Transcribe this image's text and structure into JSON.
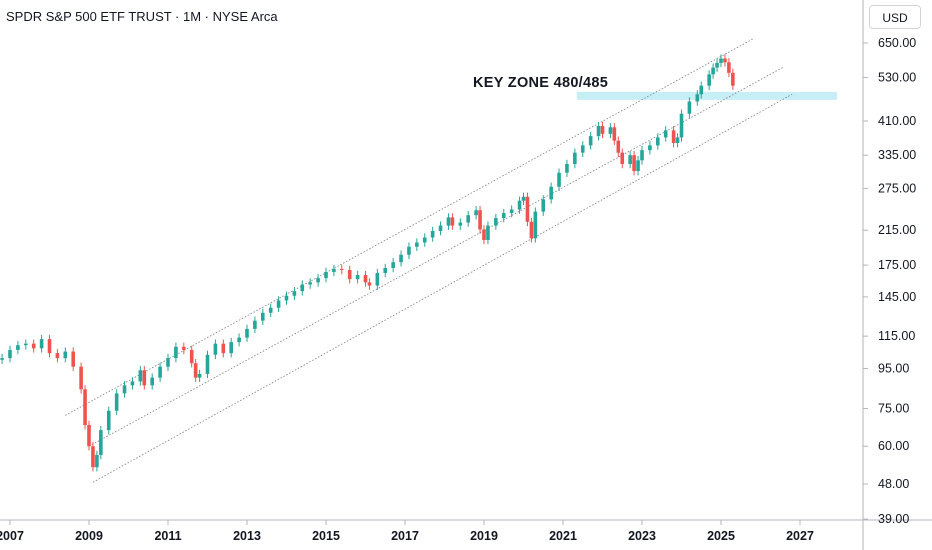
{
  "header": {
    "title": "SPDR S&P 500 ETF TRUST · 1M · NYSE Arca",
    "currency": "USD"
  },
  "chart_data": {
    "type": "candlestick",
    "title": "SPDR S&P 500 ETF TRUST · 1M · NYSE Arca",
    "y_scale": "log",
    "y_unit": "USD",
    "y_ticks": [
      650,
      530,
      410,
      335,
      275,
      215,
      175,
      145,
      115,
      95,
      75,
      60,
      48,
      39
    ],
    "y_tick_labels": [
      "650.00",
      "530.00",
      "410.00",
      "335.00",
      "275.00",
      "215.00",
      "175.00",
      "145.00",
      "115.00",
      "95.00",
      "75.00",
      "60.00",
      "48.00",
      "39.00"
    ],
    "x_tick_labels": [
      "2007",
      "2009",
      "2011",
      "2013",
      "2015",
      "2017",
      "2019",
      "2021",
      "2023",
      "2025",
      "2027"
    ],
    "x_ticks": [
      2007,
      2009,
      2011,
      2013,
      2015,
      2017,
      2019,
      2021,
      2023,
      2025,
      2027
    ],
    "x_range": [
      2006.8,
      2027.9
    ],
    "up_color": "#26a69a",
    "down_color": "#ef5350",
    "series": [
      {
        "values": [
          [
            2006.8,
            101
          ],
          [
            2007.0,
            106
          ],
          [
            2007.2,
            109
          ],
          [
            2007.4,
            110
          ],
          [
            2007.6,
            107
          ],
          [
            2007.8,
            113
          ],
          [
            2008.0,
            104
          ],
          [
            2008.2,
            101
          ],
          [
            2008.4,
            105
          ],
          [
            2008.6,
            96
          ],
          [
            2008.8,
            84
          ],
          [
            2008.9,
            68
          ],
          [
            2009.0,
            60
          ],
          [
            2009.1,
            53
          ],
          [
            2009.2,
            57
          ],
          [
            2009.3,
            66
          ],
          [
            2009.5,
            74
          ],
          [
            2009.7,
            82
          ],
          [
            2009.9,
            86
          ],
          [
            2010.1,
            88
          ],
          [
            2010.3,
            94
          ],
          [
            2010.4,
            86
          ],
          [
            2010.6,
            90
          ],
          [
            2010.8,
            96
          ],
          [
            2011.0,
            101
          ],
          [
            2011.2,
            108
          ],
          [
            2011.4,
            106
          ],
          [
            2011.6,
            98
          ],
          [
            2011.7,
            90
          ],
          [
            2011.8,
            92
          ],
          [
            2012.0,
            103
          ],
          [
            2012.2,
            110
          ],
          [
            2012.4,
            104
          ],
          [
            2012.6,
            111
          ],
          [
            2012.8,
            114
          ],
          [
            2013.0,
            120
          ],
          [
            2013.2,
            126
          ],
          [
            2013.4,
            132
          ],
          [
            2013.6,
            136
          ],
          [
            2013.8,
            142
          ],
          [
            2014.0,
            146
          ],
          [
            2014.2,
            150
          ],
          [
            2014.4,
            156
          ],
          [
            2014.6,
            158
          ],
          [
            2014.8,
            162
          ],
          [
            2015.0,
            168
          ],
          [
            2015.2,
            171
          ],
          [
            2015.4,
            170
          ],
          [
            2015.6,
            161
          ],
          [
            2015.8,
            165
          ],
          [
            2016.0,
            158
          ],
          [
            2016.1,
            155
          ],
          [
            2016.3,
            167
          ],
          [
            2016.5,
            172
          ],
          [
            2016.7,
            178
          ],
          [
            2016.9,
            186
          ],
          [
            2017.1,
            195
          ],
          [
            2017.3,
            200
          ],
          [
            2017.5,
            206
          ],
          [
            2017.7,
            214
          ],
          [
            2017.9,
            221
          ],
          [
            2018.1,
            232
          ],
          [
            2018.2,
            221
          ],
          [
            2018.4,
            225
          ],
          [
            2018.6,
            235
          ],
          [
            2018.8,
            242
          ],
          [
            2018.9,
            216
          ],
          [
            2019.0,
            203
          ],
          [
            2019.1,
            221
          ],
          [
            2019.3,
            231
          ],
          [
            2019.5,
            238
          ],
          [
            2019.7,
            243
          ],
          [
            2019.9,
            256
          ],
          [
            2020.0,
            262
          ],
          [
            2020.1,
            226
          ],
          [
            2020.2,
            205
          ],
          [
            2020.3,
            240
          ],
          [
            2020.5,
            258
          ],
          [
            2020.7,
            278
          ],
          [
            2020.9,
            302
          ],
          [
            2021.1,
            318
          ],
          [
            2021.3,
            340
          ],
          [
            2021.5,
            355
          ],
          [
            2021.7,
            375
          ],
          [
            2021.9,
            398
          ],
          [
            2022.0,
            380
          ],
          [
            2022.2,
            395
          ],
          [
            2022.3,
            365
          ],
          [
            2022.4,
            340
          ],
          [
            2022.5,
            318
          ],
          [
            2022.7,
            335
          ],
          [
            2022.8,
            305
          ],
          [
            2022.9,
            325
          ],
          [
            2023.0,
            345
          ],
          [
            2023.2,
            355
          ],
          [
            2023.4,
            372
          ],
          [
            2023.6,
            388
          ],
          [
            2023.8,
            360
          ],
          [
            2023.9,
            372
          ],
          [
            2024.0,
            428
          ],
          [
            2024.2,
            460
          ],
          [
            2024.4,
            480
          ],
          [
            2024.5,
            505
          ],
          [
            2024.7,
            540
          ],
          [
            2024.8,
            562
          ],
          [
            2024.9,
            578
          ],
          [
            2025.0,
            593
          ],
          [
            2025.1,
            580
          ],
          [
            2025.2,
            545
          ],
          [
            2025.3,
            505
          ]
        ]
      }
    ],
    "channels": [
      {
        "start": [
          2008.4,
          72
        ],
        "end": [
          2025.8,
          665
        ]
      },
      {
        "start": [
          2009.0,
          60
        ],
        "end": [
          2026.6,
          565
        ]
      },
      {
        "start": [
          2009.1,
          48.5
        ],
        "end": [
          2026.8,
          480
        ]
      }
    ],
    "zones": [
      {
        "label": "KEY ZONE 480/485",
        "x_range": [
          2021.35,
          2028.0
        ],
        "y_range": [
          473,
          487
        ],
        "color": "#c6eef5"
      }
    ]
  }
}
